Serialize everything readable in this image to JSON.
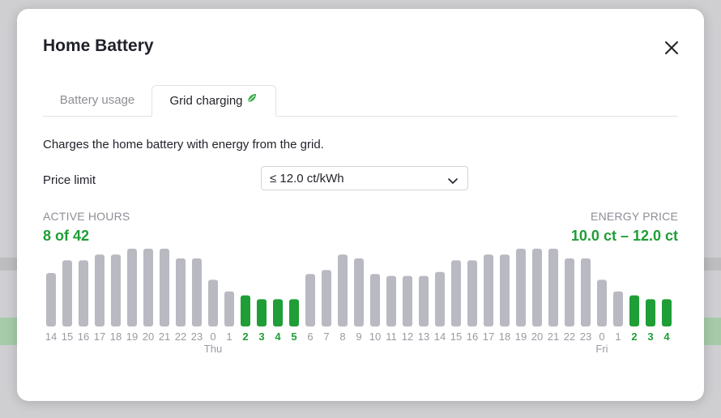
{
  "modal": {
    "title": "Home Battery",
    "close_icon": "close-icon"
  },
  "tabs": [
    {
      "label": "Battery usage",
      "active": false
    },
    {
      "label": "Grid charging",
      "active": true,
      "icon": "leaf-icon"
    }
  ],
  "description": "Charges the home battery with energy from the grid.",
  "price_limit": {
    "label": "Price limit",
    "selected": "≤ 12.0 ct/kWh",
    "icon": "chevron-down-icon"
  },
  "stats": {
    "active_hours_caption": "ACTIVE HOURS",
    "active_hours_value": "8 of 42",
    "energy_price_caption": "ENERGY PRICE",
    "energy_price_value": "10.0 ct – 12.0 ct"
  },
  "colors": {
    "active": "#1f9e37",
    "inactive": "#b9b9c2",
    "inactive_label": "#9a9ba3"
  },
  "chart_data": {
    "type": "bar",
    "categories": [
      "14",
      "15",
      "16",
      "17",
      "18",
      "19",
      "20",
      "21",
      "22",
      "23",
      "0",
      "1",
      "2",
      "3",
      "4",
      "5",
      "6",
      "7",
      "8",
      "9",
      "10",
      "11",
      "12",
      "13",
      "14",
      "15",
      "16",
      "17",
      "18",
      "19",
      "20",
      "21",
      "22",
      "23",
      "0",
      "1",
      "2",
      "3",
      "4"
    ],
    "day_labels": [
      {
        "index": 10,
        "label": "Thu"
      },
      {
        "index": 34,
        "label": "Fri"
      }
    ],
    "values": [
      0.55,
      0.68,
      0.68,
      0.74,
      0.74,
      0.8,
      0.8,
      0.8,
      0.7,
      0.7,
      0.48,
      0.36,
      0.32,
      0.28,
      0.28,
      0.28,
      0.54,
      0.58,
      0.74,
      0.7,
      0.54,
      0.52,
      0.52,
      0.52,
      0.56,
      0.68,
      0.68,
      0.74,
      0.74,
      0.8,
      0.8,
      0.8,
      0.7,
      0.7,
      0.48,
      0.36,
      0.32,
      0.28,
      0.28
    ],
    "active": [
      false,
      false,
      false,
      false,
      false,
      false,
      false,
      false,
      false,
      false,
      false,
      false,
      true,
      true,
      true,
      true,
      false,
      false,
      false,
      false,
      false,
      false,
      false,
      false,
      false,
      false,
      false,
      false,
      false,
      false,
      false,
      false,
      false,
      false,
      false,
      false,
      true,
      true,
      true
    ],
    "ylim": [
      0,
      1
    ]
  }
}
